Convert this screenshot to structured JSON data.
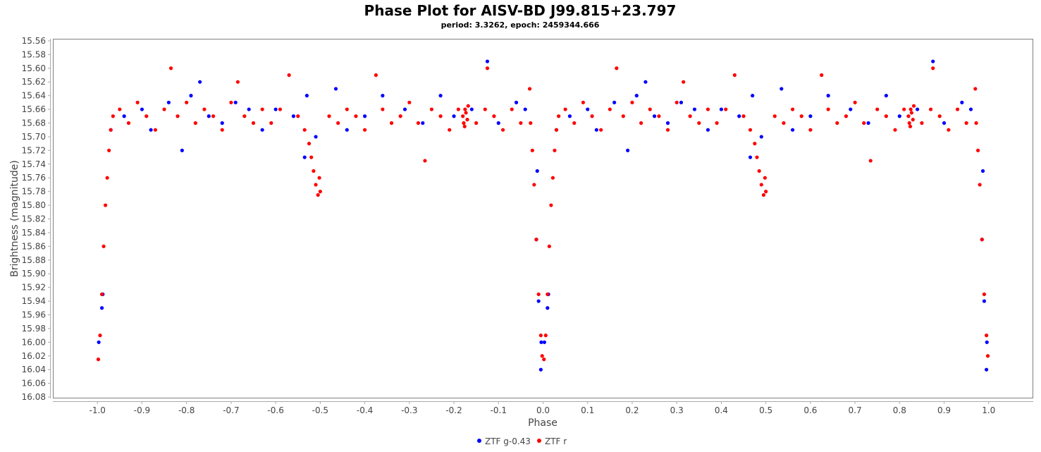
{
  "chart_data": {
    "type": "scatter",
    "title": "Phase Plot for AISV-BD J99.815+23.797",
    "subtitle": "period: 3.3262, epoch: 2459344.666",
    "xlabel": "Phase",
    "ylabel": "Brightness (magnitude)",
    "xlim": [
      -1.1,
      1.1
    ],
    "ylim": [
      15.557,
      16.082
    ],
    "y_inverted": true,
    "x_ticks": [
      "-1.0",
      "-0.9",
      "-0.8",
      "-0.7",
      "-0.6",
      "-0.5",
      "-0.4",
      "-0.3",
      "-0.2",
      "-0.1",
      "0.0",
      "0.1",
      "0.2",
      "0.3",
      "0.4",
      "0.5",
      "0.6",
      "0.7",
      "0.8",
      "0.9",
      "1.0"
    ],
    "y_ticks": [
      "15.56",
      "15.58",
      "15.60",
      "15.62",
      "15.64",
      "15.66",
      "15.68",
      "15.70",
      "15.72",
      "15.74",
      "15.76",
      "15.78",
      "15.80",
      "15.82",
      "15.84",
      "15.86",
      "15.88",
      "15.90",
      "15.92",
      "15.94",
      "15.96",
      "15.98",
      "16.00",
      "16.02",
      "16.04",
      "16.06",
      "16.08"
    ],
    "grid": false,
    "legend": "bottom",
    "series": [
      {
        "name": "ZTF g-0.43",
        "color": "#0000ff",
        "points": [
          [
            0.003,
            16.0
          ],
          [
            0.01,
            15.95
          ],
          [
            0.012,
            15.93
          ],
          [
            0.03,
            15.69
          ],
          [
            0.06,
            15.67
          ],
          [
            0.1,
            15.66
          ],
          [
            0.12,
            15.69
          ],
          [
            0.16,
            15.65
          ],
          [
            0.19,
            15.72
          ],
          [
            0.21,
            15.64
          ],
          [
            0.23,
            15.62
          ],
          [
            0.25,
            15.67
          ],
          [
            0.28,
            15.68
          ],
          [
            0.31,
            15.65
          ],
          [
            0.34,
            15.66
          ],
          [
            0.37,
            15.69
          ],
          [
            0.4,
            15.66
          ],
          [
            0.44,
            15.67
          ],
          [
            0.465,
            15.73
          ],
          [
            0.47,
            15.64
          ],
          [
            0.49,
            15.7
          ],
          [
            0.535,
            15.63
          ],
          [
            0.56,
            15.69
          ],
          [
            0.6,
            15.67
          ],
          [
            0.64,
            15.64
          ],
          [
            0.69,
            15.66
          ],
          [
            0.73,
            15.68
          ],
          [
            0.77,
            15.64
          ],
          [
            0.8,
            15.67
          ],
          [
            0.84,
            15.66
          ],
          [
            0.875,
            15.59
          ],
          [
            0.9,
            15.68
          ],
          [
            0.94,
            15.65
          ],
          [
            0.96,
            15.66
          ],
          [
            0.985,
            15.85
          ],
          [
            0.987,
            15.75
          ],
          [
            0.99,
            15.94
          ],
          [
            0.995,
            16.04
          ],
          [
            0.996,
            16.0
          ],
          [
            -0.997,
            16.0
          ],
          [
            -0.99,
            15.95
          ],
          [
            -0.988,
            15.93
          ],
          [
            -0.97,
            15.69
          ],
          [
            -0.94,
            15.67
          ],
          [
            -0.9,
            15.66
          ],
          [
            -0.88,
            15.69
          ],
          [
            -0.84,
            15.65
          ],
          [
            -0.81,
            15.72
          ],
          [
            -0.79,
            15.64
          ],
          [
            -0.77,
            15.62
          ],
          [
            -0.75,
            15.67
          ],
          [
            -0.72,
            15.68
          ],
          [
            -0.69,
            15.65
          ],
          [
            -0.66,
            15.66
          ],
          [
            -0.63,
            15.69
          ],
          [
            -0.6,
            15.66
          ],
          [
            -0.56,
            15.67
          ],
          [
            -0.535,
            15.73
          ],
          [
            -0.53,
            15.64
          ],
          [
            -0.51,
            15.7
          ],
          [
            -0.465,
            15.63
          ],
          [
            -0.44,
            15.69
          ],
          [
            -0.4,
            15.67
          ],
          [
            -0.36,
            15.64
          ],
          [
            -0.31,
            15.66
          ],
          [
            -0.27,
            15.68
          ],
          [
            -0.23,
            15.64
          ],
          [
            -0.2,
            15.67
          ],
          [
            -0.16,
            15.66
          ],
          [
            -0.125,
            15.59
          ],
          [
            -0.1,
            15.68
          ],
          [
            -0.06,
            15.65
          ],
          [
            -0.04,
            15.66
          ],
          [
            -0.015,
            15.85
          ],
          [
            -0.013,
            15.75
          ],
          [
            -0.01,
            15.94
          ],
          [
            -0.005,
            16.04
          ],
          [
            -0.004,
            16.0
          ]
        ]
      },
      {
        "name": "ZTF r",
        "color": "#ff0000",
        "points": [
          [
            0.002,
            16.025
          ],
          [
            0.006,
            15.99
          ],
          [
            0.01,
            15.93
          ],
          [
            0.014,
            15.86
          ],
          [
            0.018,
            15.8
          ],
          [
            0.022,
            15.76
          ],
          [
            0.026,
            15.72
          ],
          [
            0.03,
            15.69
          ],
          [
            0.035,
            15.67
          ],
          [
            0.05,
            15.66
          ],
          [
            0.07,
            15.68
          ],
          [
            0.09,
            15.65
          ],
          [
            0.11,
            15.67
          ],
          [
            0.13,
            15.69
          ],
          [
            0.15,
            15.66
          ],
          [
            0.165,
            15.6
          ],
          [
            0.18,
            15.67
          ],
          [
            0.2,
            15.65
          ],
          [
            0.22,
            15.68
          ],
          [
            0.24,
            15.66
          ],
          [
            0.26,
            15.67
          ],
          [
            0.28,
            15.69
          ],
          [
            0.3,
            15.65
          ],
          [
            0.315,
            15.62
          ],
          [
            0.33,
            15.67
          ],
          [
            0.35,
            15.68
          ],
          [
            0.37,
            15.66
          ],
          [
            0.39,
            15.68
          ],
          [
            0.41,
            15.66
          ],
          [
            0.43,
            15.61
          ],
          [
            0.45,
            15.67
          ],
          [
            0.465,
            15.69
          ],
          [
            0.475,
            15.71
          ],
          [
            0.48,
            15.73
          ],
          [
            0.485,
            15.75
          ],
          [
            0.49,
            15.77
          ],
          [
            0.495,
            15.785
          ],
          [
            0.498,
            15.76
          ],
          [
            0.5,
            15.78
          ],
          [
            0.52,
            15.67
          ],
          [
            0.54,
            15.68
          ],
          [
            0.56,
            15.66
          ],
          [
            0.58,
            15.67
          ],
          [
            0.6,
            15.69
          ],
          [
            0.625,
            15.61
          ],
          [
            0.64,
            15.66
          ],
          [
            0.66,
            15.68
          ],
          [
            0.68,
            15.67
          ],
          [
            0.7,
            15.65
          ],
          [
            0.72,
            15.68
          ],
          [
            0.735,
            15.735
          ],
          [
            0.75,
            15.66
          ],
          [
            0.77,
            15.67
          ],
          [
            0.79,
            15.69
          ],
          [
            0.81,
            15.66
          ],
          [
            0.82,
            15.67
          ],
          [
            0.822,
            15.68
          ],
          [
            0.824,
            15.685
          ],
          [
            0.825,
            15.66
          ],
          [
            0.827,
            15.665
          ],
          [
            0.83,
            15.675
          ],
          [
            0.832,
            15.655
          ],
          [
            0.85,
            15.68
          ],
          [
            0.87,
            15.66
          ],
          [
            0.875,
            15.6
          ],
          [
            0.89,
            15.67
          ],
          [
            0.91,
            15.69
          ],
          [
            0.93,
            15.66
          ],
          [
            0.95,
            15.68
          ],
          [
            0.97,
            15.63
          ],
          [
            0.972,
            15.68
          ],
          [
            0.976,
            15.72
          ],
          [
            0.98,
            15.77
          ],
          [
            0.985,
            15.85
          ],
          [
            0.99,
            15.93
          ],
          [
            0.995,
            15.99
          ],
          [
            0.998,
            16.02
          ],
          [
            -0.998,
            16.025
          ],
          [
            -0.994,
            15.99
          ],
          [
            -0.99,
            15.93
          ],
          [
            -0.986,
            15.86
          ],
          [
            -0.982,
            15.8
          ],
          [
            -0.978,
            15.76
          ],
          [
            -0.974,
            15.72
          ],
          [
            -0.97,
            15.69
          ],
          [
            -0.965,
            15.67
          ],
          [
            -0.95,
            15.66
          ],
          [
            -0.93,
            15.68
          ],
          [
            -0.91,
            15.65
          ],
          [
            -0.89,
            15.67
          ],
          [
            -0.87,
            15.69
          ],
          [
            -0.85,
            15.66
          ],
          [
            -0.835,
            15.6
          ],
          [
            -0.82,
            15.67
          ],
          [
            -0.8,
            15.65
          ],
          [
            -0.78,
            15.68
          ],
          [
            -0.76,
            15.66
          ],
          [
            -0.74,
            15.67
          ],
          [
            -0.72,
            15.69
          ],
          [
            -0.7,
            15.65
          ],
          [
            -0.685,
            15.62
          ],
          [
            -0.67,
            15.67
          ],
          [
            -0.65,
            15.68
          ],
          [
            -0.63,
            15.66
          ],
          [
            -0.61,
            15.68
          ],
          [
            -0.59,
            15.66
          ],
          [
            -0.57,
            15.61
          ],
          [
            -0.55,
            15.67
          ],
          [
            -0.535,
            15.69
          ],
          [
            -0.525,
            15.71
          ],
          [
            -0.52,
            15.73
          ],
          [
            -0.515,
            15.75
          ],
          [
            -0.51,
            15.77
          ],
          [
            -0.505,
            15.785
          ],
          [
            -0.502,
            15.76
          ],
          [
            -0.5,
            15.78
          ],
          [
            -0.48,
            15.67
          ],
          [
            -0.46,
            15.68
          ],
          [
            -0.44,
            15.66
          ],
          [
            -0.42,
            15.67
          ],
          [
            -0.4,
            15.69
          ],
          [
            -0.375,
            15.61
          ],
          [
            -0.36,
            15.66
          ],
          [
            -0.34,
            15.68
          ],
          [
            -0.32,
            15.67
          ],
          [
            -0.3,
            15.65
          ],
          [
            -0.28,
            15.68
          ],
          [
            -0.265,
            15.735
          ],
          [
            -0.25,
            15.66
          ],
          [
            -0.23,
            15.67
          ],
          [
            -0.21,
            15.69
          ],
          [
            -0.19,
            15.66
          ],
          [
            -0.18,
            15.67
          ],
          [
            -0.178,
            15.68
          ],
          [
            -0.176,
            15.685
          ],
          [
            -0.175,
            15.66
          ],
          [
            -0.173,
            15.665
          ],
          [
            -0.17,
            15.675
          ],
          [
            -0.168,
            15.655
          ],
          [
            -0.15,
            15.68
          ],
          [
            -0.13,
            15.66
          ],
          [
            -0.125,
            15.6
          ],
          [
            -0.11,
            15.67
          ],
          [
            -0.09,
            15.69
          ],
          [
            -0.07,
            15.66
          ],
          [
            -0.05,
            15.68
          ],
          [
            -0.03,
            15.63
          ],
          [
            -0.028,
            15.68
          ],
          [
            -0.024,
            15.72
          ],
          [
            -0.02,
            15.77
          ],
          [
            -0.015,
            15.85
          ],
          [
            -0.01,
            15.93
          ],
          [
            -0.005,
            15.99
          ],
          [
            -0.002,
            16.02
          ]
        ]
      }
    ]
  }
}
